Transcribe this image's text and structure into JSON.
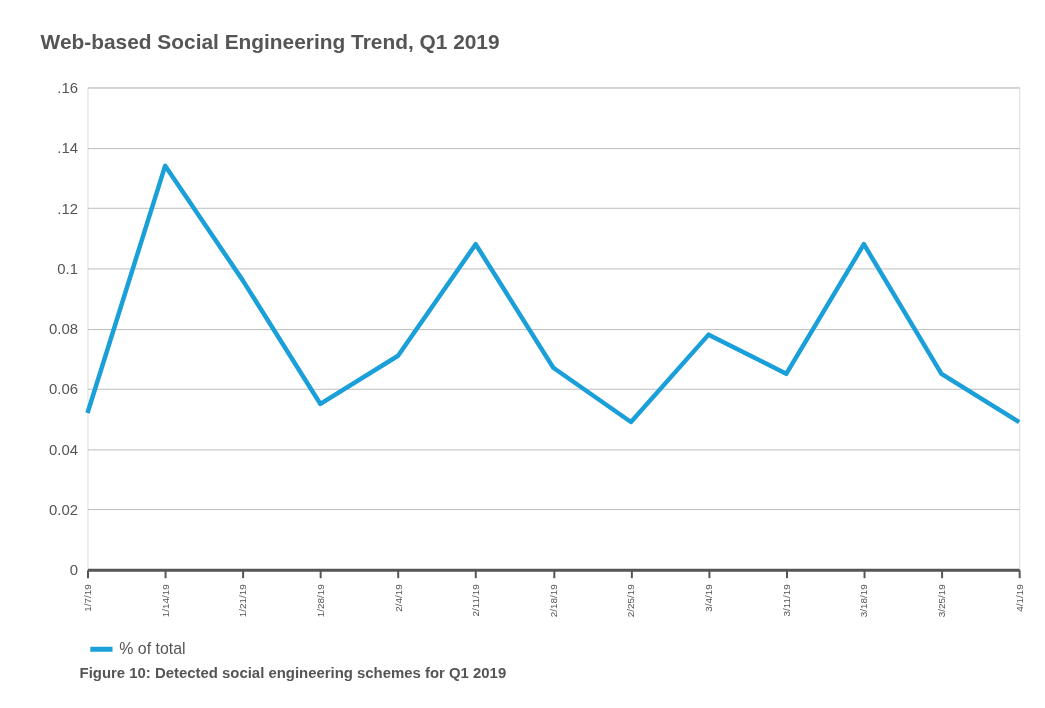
{
  "chart_data": {
    "type": "line",
    "title": "Web-based Social Engineering Trend, Q1 2019",
    "categories": [
      "1/7/19",
      "1/14/19",
      "1/21/19",
      "1/28/19",
      "2/4/19",
      "2/11/19",
      "2/18/19",
      "2/25/19",
      "3/4/19",
      "3/11/19",
      "3/18/19",
      "3/25/19",
      "4/1/19"
    ],
    "series": [
      {
        "name": "% of total",
        "color": "#1a9fd9",
        "values": [
          0.052,
          0.134,
          0.096,
          0.055,
          0.071,
          0.108,
          0.067,
          0.049,
          0.078,
          0.065,
          0.108,
          0.065,
          0.049
        ]
      }
    ],
    "ylim": [
      0,
      0.16
    ],
    "yticks": [
      0,
      {
        "value": 0.02,
        "label": "0.02"
      },
      {
        "value": 0.04,
        "label": "0.04"
      },
      {
        "value": 0.06,
        "label": "0.06"
      },
      {
        "value": 0.08,
        "label": "0.08"
      },
      {
        "value": 0.1,
        "label": "0.1"
      },
      {
        "value": 0.12,
        "label": ".12"
      },
      {
        "value": 0.14,
        "label": ".14"
      },
      {
        "value": 0.16,
        "label": ".16"
      }
    ],
    "grid": "y",
    "legend": "bottom",
    "marker": "none",
    "line_style": "solid",
    "annotations": [
      "Figure 10: Detected social engineering schemes for Q1 2019"
    ]
  }
}
